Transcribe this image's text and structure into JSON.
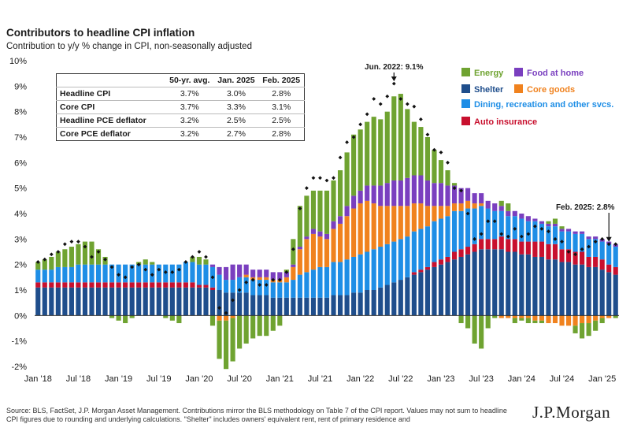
{
  "title": "Contributors to headline CPI inflation",
  "subtitle": "Contribution to y/y % change in CPI, non-seasonally adjusted",
  "source": "Source: BLS, FactSet, J.P. Morgan Asset Management. Contributions mirror the BLS methodology on Table 7 of the CPI report. Values may not sum to headline CPI figures due to rounding and underlying calculations. \"Shelter\" includes owners' equivalent rent, rent of primary residence and",
  "logo": "J.P.Morgan",
  "table": {
    "headers": [
      "",
      "50-yr. avg.",
      "Jan. 2025",
      "Feb. 2025"
    ],
    "rows": [
      {
        "label": "Headline CPI",
        "values": [
          "3.7%",
          "3.0%",
          "2.8%"
        ]
      },
      {
        "label": "Core CPI",
        "values": [
          "3.7%",
          "3.3%",
          "3.1%"
        ]
      },
      {
        "label": "Headline PCE deflator",
        "values": [
          "3.2%",
          "2.5%",
          "2.5%"
        ]
      },
      {
        "label": "Core PCE deflator",
        "values": [
          "3.2%",
          "2.7%",
          "2.8%"
        ]
      }
    ]
  },
  "chart_data": {
    "type": "bar",
    "stacked": true,
    "ylim": [
      -2,
      10
    ],
    "yticks": [
      -2,
      -1,
      0,
      1,
      2,
      3,
      4,
      5,
      6,
      7,
      8,
      9,
      10
    ],
    "ytick_labels": [
      "-2%",
      "-1%",
      "0%",
      "1%",
      "2%",
      "3%",
      "4%",
      "5%",
      "6%",
      "7%",
      "8%",
      "9%",
      "10%"
    ],
    "x_ticks": [
      {
        "label": "Jan '18",
        "index": 0
      },
      {
        "label": "Jul '18",
        "index": 6
      },
      {
        "label": "Jan '19",
        "index": 12
      },
      {
        "label": "Jul '19",
        "index": 18
      },
      {
        "label": "Jan '20",
        "index": 24
      },
      {
        "label": "Jul '20",
        "index": 30
      },
      {
        "label": "Jan '21",
        "index": 36
      },
      {
        "label": "Jul '21",
        "index": 42
      },
      {
        "label": "Jan '22",
        "index": 48
      },
      {
        "label": "Jul '22",
        "index": 54
      },
      {
        "label": "Jan '23",
        "index": 60
      },
      {
        "label": "Jul '23",
        "index": 66
      },
      {
        "label": "Jan '24",
        "index": 72
      },
      {
        "label": "Jul '24",
        "index": 78
      },
      {
        "label": "Jan '25",
        "index": 84
      }
    ],
    "legend_position": "top-right",
    "grid": false,
    "series": [
      {
        "name": "Shelter",
        "color": "#1f4e8c",
        "values": [
          1.1,
          1.1,
          1.1,
          1.1,
          1.1,
          1.1,
          1.1,
          1.1,
          1.1,
          1.1,
          1.1,
          1.1,
          1.1,
          1.1,
          1.1,
          1.1,
          1.1,
          1.1,
          1.1,
          1.1,
          1.1,
          1.1,
          1.1,
          1.1,
          1.1,
          1.1,
          1.0,
          1.0,
          0.9,
          0.9,
          0.9,
          0.9,
          0.8,
          0.8,
          0.8,
          0.7,
          0.7,
          0.7,
          0.7,
          0.7,
          0.7,
          0.7,
          0.7,
          0.7,
          0.8,
          0.8,
          0.8,
          0.9,
          0.9,
          1.0,
          1.0,
          1.1,
          1.2,
          1.3,
          1.4,
          1.5,
          1.6,
          1.7,
          1.8,
          1.9,
          2.0,
          2.1,
          2.2,
          2.3,
          2.4,
          2.5,
          2.6,
          2.6,
          2.6,
          2.6,
          2.5,
          2.5,
          2.4,
          2.4,
          2.3,
          2.3,
          2.2,
          2.2,
          2.1,
          2.1,
          2.0,
          2.0,
          1.9,
          1.9,
          1.8,
          1.7,
          1.6
        ]
      },
      {
        "name": "Auto insurance",
        "color": "#c8102e",
        "values": [
          0.2,
          0.2,
          0.2,
          0.2,
          0.2,
          0.2,
          0.2,
          0.2,
          0.2,
          0.2,
          0.2,
          0.2,
          0.2,
          0.2,
          0.2,
          0.2,
          0.2,
          0.2,
          0.2,
          0.2,
          0.2,
          0.2,
          0.2,
          0.2,
          0.1,
          0.1,
          0.1,
          0.0,
          0.0,
          0.0,
          0.0,
          0.0,
          0.0,
          0.0,
          0.0,
          0.0,
          0.0,
          0.0,
          0.0,
          0.0,
          0.0,
          0.0,
          0.0,
          0.0,
          0.0,
          0.0,
          0.0,
          0.0,
          0.0,
          0.0,
          0.0,
          0.0,
          0.0,
          0.0,
          0.0,
          0.0,
          0.1,
          0.1,
          0.1,
          0.2,
          0.2,
          0.2,
          0.3,
          0.3,
          0.3,
          0.3,
          0.4,
          0.4,
          0.4,
          0.5,
          0.5,
          0.5,
          0.5,
          0.5,
          0.6,
          0.6,
          0.6,
          0.6,
          0.5,
          0.5,
          0.5,
          0.5,
          0.4,
          0.4,
          0.4,
          0.3,
          0.3
        ]
      },
      {
        "name": "Dining, recreation and other svcs.",
        "color": "#1e8ee6",
        "values": [
          0.5,
          0.5,
          0.5,
          0.6,
          0.6,
          0.6,
          0.7,
          0.7,
          0.7,
          0.7,
          0.7,
          0.7,
          0.7,
          0.7,
          0.7,
          0.7,
          0.7,
          0.7,
          0.7,
          0.7,
          0.7,
          0.7,
          0.8,
          0.8,
          0.8,
          0.8,
          0.8,
          0.6,
          0.5,
          0.5,
          0.6,
          0.6,
          0.6,
          0.6,
          0.6,
          0.6,
          0.6,
          0.6,
          0.7,
          0.9,
          1.0,
          1.1,
          1.2,
          1.2,
          1.3,
          1.3,
          1.4,
          1.4,
          1.5,
          1.5,
          1.6,
          1.6,
          1.6,
          1.6,
          1.6,
          1.6,
          1.6,
          1.6,
          1.6,
          1.6,
          1.6,
          1.6,
          1.6,
          1.5,
          1.5,
          1.4,
          1.3,
          1.2,
          1.1,
          1.0,
          0.9,
          0.9,
          0.9,
          0.8,
          0.8,
          0.7,
          0.7,
          0.7,
          0.7,
          0.7,
          0.7,
          0.7,
          0.7,
          0.7,
          0.7,
          0.8,
          0.8
        ]
      },
      {
        "name": "Core goods",
        "color": "#f0821e",
        "values": [
          0.0,
          0.0,
          0.0,
          0.0,
          0.0,
          0.0,
          0.0,
          0.0,
          0.0,
          0.0,
          0.0,
          0.0,
          0.0,
          0.0,
          0.0,
          0.0,
          0.0,
          0.0,
          0.0,
          0.0,
          0.0,
          0.0,
          0.0,
          0.0,
          0.0,
          0.0,
          0.0,
          -0.2,
          -0.2,
          -0.1,
          0.0,
          0.1,
          0.1,
          0.1,
          0.1,
          0.1,
          0.1,
          0.2,
          0.5,
          1.0,
          1.3,
          1.4,
          1.2,
          1.1,
          1.3,
          1.5,
          1.7,
          1.9,
          2.0,
          2.0,
          1.8,
          1.6,
          1.5,
          1.4,
          1.3,
          1.2,
          1.1,
          1.0,
          0.8,
          0.6,
          0.5,
          0.4,
          0.3,
          0.3,
          0.3,
          0.2,
          0.1,
          0.0,
          0.0,
          -0.1,
          -0.1,
          -0.1,
          -0.1,
          -0.1,
          -0.2,
          -0.2,
          -0.3,
          -0.3,
          -0.4,
          -0.4,
          -0.4,
          -0.3,
          -0.3,
          -0.2,
          -0.1,
          -0.1,
          0.0
        ]
      },
      {
        "name": "Food at home",
        "color": "#7a3fbf",
        "values": [
          0.0,
          0.0,
          0.0,
          0.0,
          0.0,
          0.0,
          0.0,
          0.0,
          0.0,
          0.0,
          0.0,
          0.0,
          0.0,
          0.0,
          0.0,
          0.0,
          0.0,
          0.0,
          0.0,
          0.0,
          0.0,
          0.0,
          0.0,
          0.0,
          0.0,
          0.0,
          0.1,
          0.3,
          0.5,
          0.6,
          0.5,
          0.4,
          0.3,
          0.3,
          0.3,
          0.3,
          0.3,
          0.2,
          0.1,
          0.1,
          0.1,
          0.2,
          0.2,
          0.2,
          0.3,
          0.3,
          0.4,
          0.5,
          0.5,
          0.6,
          0.7,
          0.8,
          0.9,
          1.0,
          1.0,
          1.1,
          1.1,
          1.1,
          1.0,
          0.9,
          0.9,
          0.8,
          0.7,
          0.6,
          0.5,
          0.4,
          0.4,
          0.3,
          0.3,
          0.2,
          0.2,
          0.2,
          0.2,
          0.2,
          0.1,
          0.1,
          0.1,
          0.1,
          0.1,
          0.1,
          0.1,
          0.1,
          0.1,
          0.1,
          0.1,
          0.1,
          0.1
        ]
      },
      {
        "name": "Energy",
        "color": "#6fa331",
        "values": [
          0.3,
          0.4,
          0.5,
          0.6,
          0.7,
          0.8,
          0.8,
          0.9,
          0.9,
          0.6,
          0.3,
          -0.1,
          -0.2,
          -0.3,
          -0.1,
          0.1,
          0.2,
          0.1,
          0.0,
          -0.1,
          -0.2,
          -0.3,
          0.0,
          0.2,
          0.3,
          0.2,
          -0.4,
          -1.5,
          -1.9,
          -1.7,
          -1.3,
          -1.1,
          -0.9,
          -0.8,
          -0.8,
          -0.6,
          -0.4,
          0.1,
          1.0,
          1.6,
          1.6,
          1.5,
          1.6,
          1.7,
          1.6,
          1.8,
          2.1,
          2.4,
          2.4,
          2.5,
          2.7,
          2.6,
          2.8,
          3.3,
          3.4,
          2.7,
          2.1,
          1.9,
          1.7,
          1.3,
          0.9,
          0.6,
          0.1,
          -0.3,
          -0.5,
          -1.1,
          -1.3,
          -0.5,
          -0.1,
          0.2,
          0.3,
          -0.2,
          -0.1,
          -0.2,
          -0.1,
          -0.1,
          0.1,
          0.2,
          0.1,
          0.0,
          -0.3,
          -0.6,
          -0.5,
          -0.4,
          -0.2,
          0.0,
          -0.1
        ]
      }
    ],
    "headline": [
      2.1,
      2.2,
      2.4,
      2.5,
      2.8,
      2.9,
      2.9,
      2.7,
      2.3,
      2.5,
      2.2,
      1.9,
      1.6,
      1.5,
      1.9,
      2.0,
      1.8,
      1.6,
      1.8,
      1.7,
      1.7,
      1.8,
      2.1,
      2.3,
      2.5,
      2.3,
      1.5,
      0.3,
      0.1,
      0.6,
      1.0,
      1.3,
      1.4,
      1.2,
      1.2,
      1.4,
      1.4,
      1.7,
      2.6,
      4.2,
      5.0,
      5.4,
      5.4,
      5.3,
      5.4,
      6.2,
      6.8,
      7.0,
      7.5,
      7.9,
      8.5,
      8.3,
      8.6,
      9.1,
      8.5,
      8.3,
      8.2,
      7.7,
      7.1,
      6.5,
      6.4,
      6.0,
      5.0,
      4.9,
      4.0,
      3.0,
      3.2,
      3.7,
      3.7,
      3.2,
      3.1,
      3.4,
      3.1,
      3.2,
      3.5,
      3.4,
      3.3,
      3.0,
      2.9,
      2.5,
      2.4,
      2.6,
      2.7,
      2.9,
      3.0,
      2.8,
      2.8
    ],
    "annotations": [
      {
        "text": "Jun. 2022: 9.1%",
        "index": 53
      },
      {
        "text": "Feb. 2025: 2.8%",
        "index": 85
      }
    ]
  }
}
